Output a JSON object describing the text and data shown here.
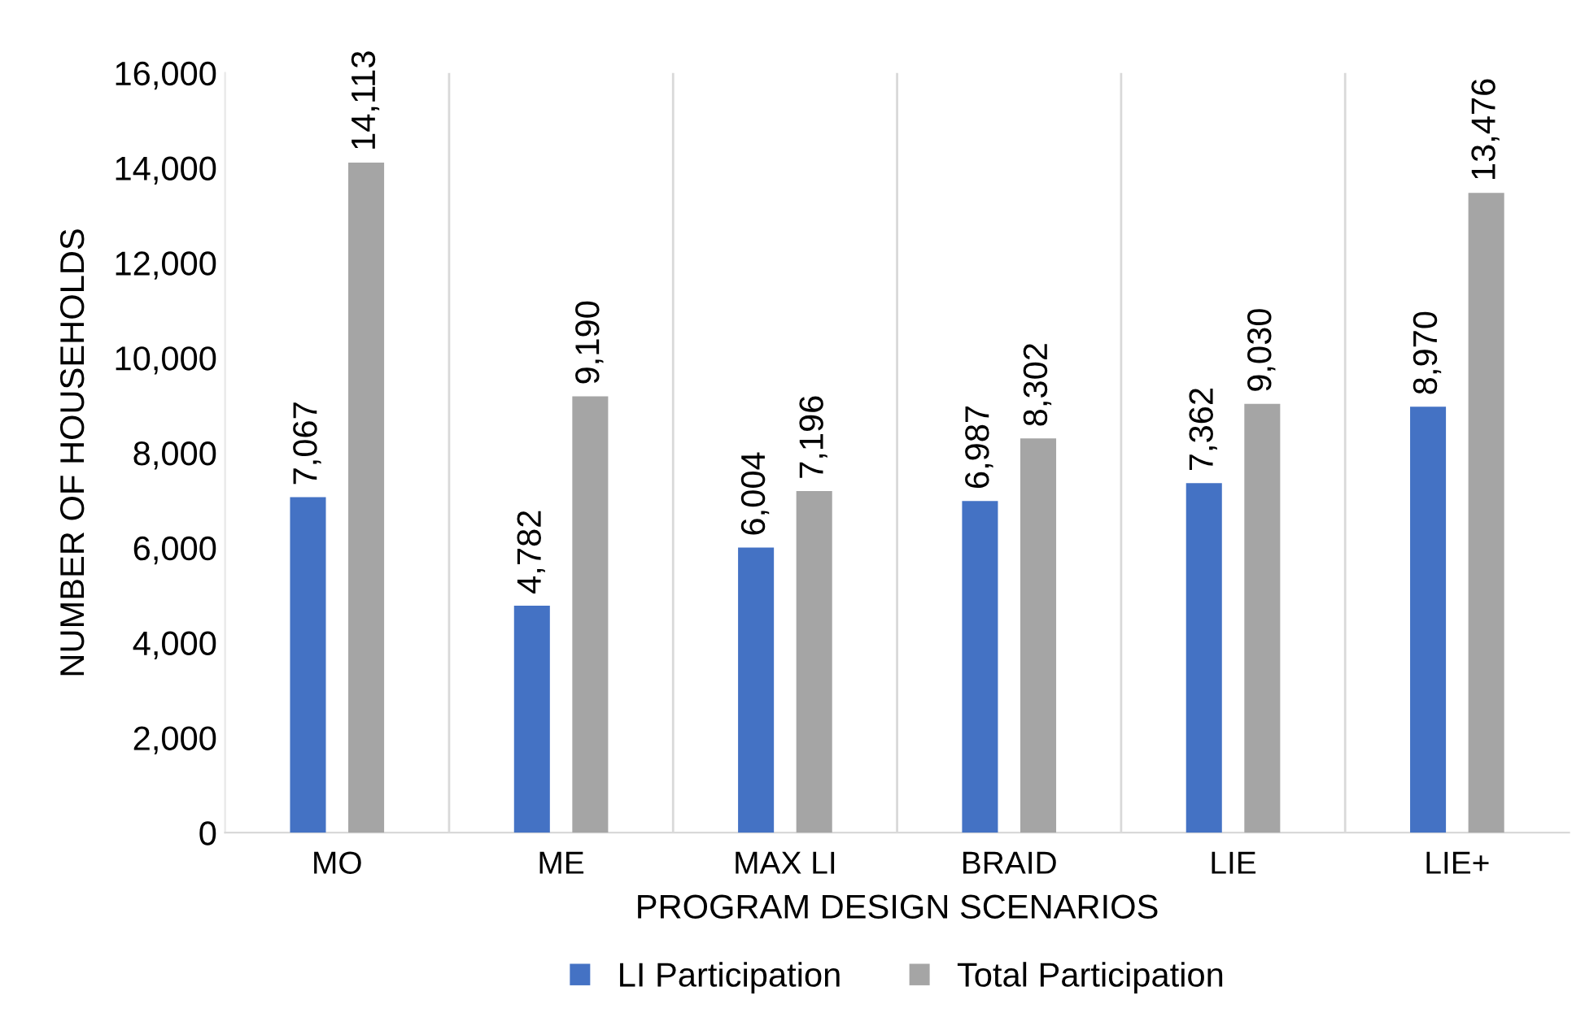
{
  "chart_data": {
    "type": "bar",
    "xlabel": "PROGRAM DESIGN SCENARIOS",
    "ylabel": "NUMBER OF HOUSEHOLDS",
    "categories": [
      "MO",
      "ME",
      "MAX LI",
      "BRAID",
      "LIE",
      "LIE+"
    ],
    "series": [
      {
        "name": "LI Participation",
        "color": "#4472c4",
        "values": [
          7067,
          4782,
          6004,
          6987,
          7362,
          8970
        ],
        "value_labels": [
          "7,067",
          "4,782",
          "6,004",
          "6,987",
          "7,362",
          "8,970"
        ]
      },
      {
        "name": "Total Participation",
        "color": "#a5a5a5",
        "values": [
          14113,
          9190,
          7196,
          8302,
          9030,
          13476
        ],
        "value_labels": [
          "14,113",
          "9,190",
          "7,196",
          "8,302",
          "9,030",
          "13,476"
        ]
      }
    ],
    "ylim": [
      0,
      16000
    ],
    "yticks": [
      {
        "value": 0,
        "label": "0"
      },
      {
        "value": 2000,
        "label": "2,000"
      },
      {
        "value": 4000,
        "label": "4,000"
      },
      {
        "value": 6000,
        "label": "6,000"
      },
      {
        "value": 8000,
        "label": "8,000"
      },
      {
        "value": 10000,
        "label": "10,000"
      },
      {
        "value": 12000,
        "label": "12,000"
      },
      {
        "value": 14000,
        "label": "14,000"
      },
      {
        "value": 16000,
        "label": "16,000"
      }
    ],
    "grid": "x",
    "legend": "bottom"
  }
}
